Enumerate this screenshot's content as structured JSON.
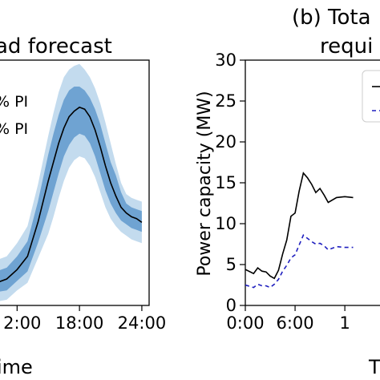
{
  "chart_data": [
    {
      "type": "area",
      "title": "ad forecast",
      "xlabel": "ime",
      "ylabel": "",
      "xlim": [
        10.2,
        24.7
      ],
      "ylim": [
        0,
        13
      ],
      "x_ticks": [
        12,
        18,
        24
      ],
      "x_tick_labels": [
        "2:00",
        "18:00",
        "24:00"
      ],
      "legend": {
        "placement": "top-left",
        "entries": [
          "% PI",
          "% PI"
        ]
      },
      "x": [
        10.0,
        11.0,
        12.0,
        13.0,
        14.0,
        15.0,
        15.5,
        16.0,
        16.5,
        17.0,
        17.5,
        18.0,
        18.5,
        19.0,
        19.5,
        20.0,
        20.5,
        21.0,
        21.5,
        22.0,
        22.5,
        23.0,
        23.5,
        24.0
      ],
      "series": [
        {
          "name": "",
          "role": "mean",
          "values": [
            1.2,
            1.4,
            1.9,
            2.6,
            4.4,
            6.6,
            7.6,
            8.6,
            9.4,
            10.0,
            10.3,
            10.5,
            10.4,
            10.0,
            9.3,
            8.4,
            7.4,
            6.5,
            5.8,
            5.2,
            4.9,
            4.7,
            4.6,
            4.4
          ]
        },
        {
          "name": "",
          "role": "inner-lower",
          "values": [
            0.7,
            0.8,
            1.3,
            1.8,
            3.3,
            5.0,
            6.0,
            7.0,
            7.9,
            8.5,
            8.9,
            9.1,
            9.0,
            8.6,
            7.9,
            7.0,
            6.1,
            5.4,
            4.9,
            4.5,
            4.3,
            4.1,
            4.0,
            3.9
          ]
        },
        {
          "name": "",
          "role": "inner-upper",
          "values": [
            1.8,
            2.0,
            2.6,
            3.4,
            5.5,
            8.0,
            9.1,
            10.1,
            10.9,
            11.4,
            11.6,
            11.6,
            11.4,
            11.0,
            10.4,
            9.6,
            8.6,
            7.6,
            6.9,
            6.0,
            5.4,
            5.2,
            5.1,
            5.0
          ]
        },
        {
          "name": "",
          "role": "outer-lower",
          "values": [
            0.2,
            0.3,
            0.8,
            1.2,
            2.5,
            3.8,
            4.7,
            5.7,
            6.6,
            7.3,
            7.7,
            7.9,
            7.8,
            7.4,
            6.8,
            6.0,
            5.2,
            4.6,
            4.2,
            3.9,
            3.7,
            3.5,
            3.4,
            3.3
          ]
        },
        {
          "name": "",
          "role": "outer-upper",
          "values": [
            2.4,
            2.6,
            3.3,
            4.2,
            6.4,
            9.0,
            10.2,
            11.3,
            12.1,
            12.5,
            12.7,
            12.8,
            12.5,
            12.1,
            11.5,
            10.7,
            9.7,
            8.6,
            7.5,
            6.5,
            5.9,
            5.7,
            5.6,
            5.5
          ]
        }
      ],
      "colors": {
        "mean": "#000000",
        "inner": "#6fa3d2",
        "outer": "#c3dbee"
      }
    },
    {
      "type": "line",
      "title": "(b) Tota",
      "subtitle": "requi",
      "xlabel": "T",
      "ylabel": "Power capacity (MW)",
      "xlim": [
        0,
        17.4
      ],
      "ylim": [
        0,
        30
      ],
      "x_ticks": [
        0,
        6,
        12
      ],
      "x_tick_labels": [
        "0:00",
        "6:00",
        "1"
      ],
      "y_ticks": [
        0,
        5,
        10,
        15,
        20,
        25,
        30
      ],
      "y_tick_labels": [
        "0",
        "5",
        "10",
        "15",
        "20",
        "25",
        "30"
      ],
      "legend": {
        "placement": "top-right",
        "entries": [
          "",
          ""
        ]
      },
      "x": [
        0,
        1,
        1.5,
        2,
        2.5,
        3,
        3.5,
        4,
        4.5,
        5,
        5.5,
        6,
        6.5,
        7,
        7.5,
        8,
        8.5,
        9,
        9.5,
        10,
        11,
        12,
        13
      ],
      "series": [
        {
          "name": "",
          "color": "#000000",
          "dash": "solid",
          "values": [
            4.4,
            3.9,
            4.6,
            4.2,
            4.1,
            3.6,
            3.3,
            4.3,
            6.3,
            8.0,
            10.9,
            11.3,
            14.0,
            16.2,
            15.6,
            14.8,
            13.8,
            14.3,
            13.5,
            12.6,
            13.2,
            13.3,
            13.2
          ]
        },
        {
          "name": "",
          "color": "#1f1fbf",
          "dash": "dashed",
          "values": [
            2.5,
            2.2,
            2.6,
            2.4,
            2.4,
            2.2,
            2.6,
            3.2,
            4.2,
            4.9,
            5.8,
            6.2,
            7.4,
            8.6,
            8.2,
            7.8,
            7.5,
            7.6,
            7.3,
            6.8,
            7.2,
            7.1,
            7.1
          ]
        }
      ]
    }
  ]
}
